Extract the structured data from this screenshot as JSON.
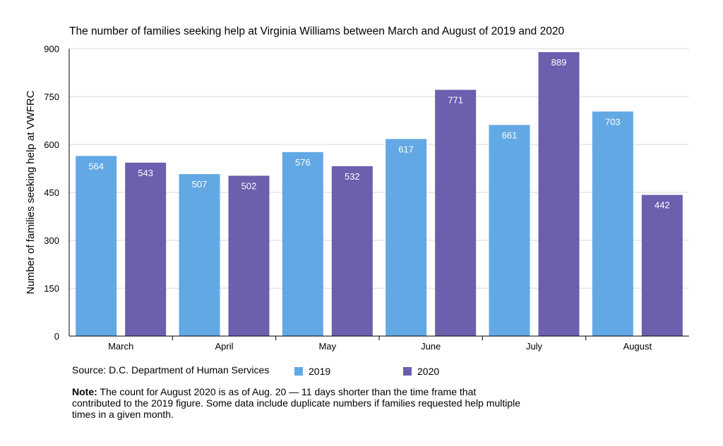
{
  "chart_data": {
    "type": "bar",
    "title": "The number of families seeking help at Virginia Williams between March and August of 2019 and 2020",
    "xlabel": "",
    "ylabel": "Number of families seeking help at VWFRC",
    "categories": [
      "March",
      "April",
      "May",
      "June",
      "July",
      "August"
    ],
    "series": [
      {
        "name": "2019",
        "color": "#62A8E5",
        "values": [
          564,
          507,
          576,
          617,
          661,
          703
        ]
      },
      {
        "name": "2020",
        "color": "#6B5FAE",
        "values": [
          543,
          502,
          532,
          771,
          889,
          442
        ]
      }
    ],
    "ylim": [
      0,
      900
    ],
    "yticks": [
      0,
      150,
      300,
      450,
      600,
      750,
      900
    ],
    "grid": true,
    "legend": "bottom"
  },
  "footer": {
    "source": "Source: D.C. Department of Human Services",
    "note_label": "Note:",
    "note_text": " The count for August 2020 is as of Aug. 20 — 11 days shorter than the time frame that contributed to the 2019 figure. Some data include duplicate numbers if families requested help multiple times in a given month."
  }
}
